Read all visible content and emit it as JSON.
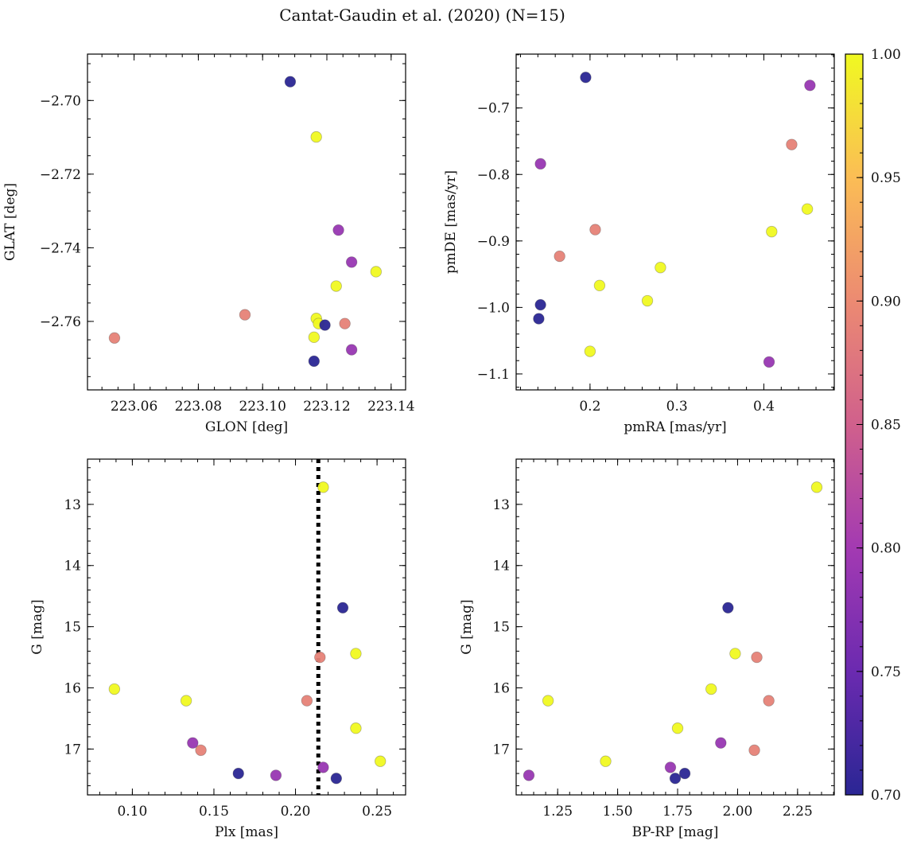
{
  "figure": {
    "title": "Cantat-Gaudin et al. (2020) (N=15)"
  },
  "colorbar": {
    "min": 0.7,
    "max": 1.0,
    "ticks": [
      0.7,
      0.75,
      0.8,
      0.85,
      0.9,
      0.95,
      1.0
    ],
    "tick_labels": [
      "0.70",
      "0.75",
      "0.80",
      "0.85",
      "0.90",
      "0.95",
      "1.00"
    ],
    "colormap": "plasma",
    "color_stops": [
      "#2a2694",
      "#6b2ab0",
      "#a33ab2",
      "#d0608c",
      "#ec8a72",
      "#fbbd55",
      "#f0f921"
    ]
  },
  "chart_data": [
    {
      "type": "scatter",
      "xlabel": "GLON [deg]",
      "ylabel": "GLAT [deg]",
      "xlim": [
        223.0455,
        223.1445
      ],
      "ylim": [
        -2.7786,
        -2.6874
      ],
      "xticks": [
        223.06,
        223.08,
        223.1,
        223.12,
        223.14
      ],
      "xtick_labels": [
        "223.06",
        "223.08",
        "223.10",
        "223.12",
        "223.14"
      ],
      "xminor": 0.005,
      "yticks": [
        -2.7,
        -2.72,
        -2.74,
        -2.76
      ],
      "ytick_labels": [
        "−2.70",
        "−2.72",
        "−2.74",
        "−2.76"
      ],
      "yminor": 0.005,
      "points": [
        {
          "x": 223.0539,
          "y": -2.7645,
          "c": 0.89
        },
        {
          "x": 223.0945,
          "y": -2.7582,
          "c": 0.89
        },
        {
          "x": 223.1086,
          "y": -2.6949,
          "c": 0.7
        },
        {
          "x": 223.1167,
          "y": -2.7099,
          "c": 1.0
        },
        {
          "x": 223.1236,
          "y": -2.7352,
          "c": 0.79
        },
        {
          "x": 223.1277,
          "y": -2.7439,
          "c": 0.79
        },
        {
          "x": 223.1353,
          "y": -2.7465,
          "c": 1.0
        },
        {
          "x": 223.1229,
          "y": -2.7504,
          "c": 1.0
        },
        {
          "x": 223.1167,
          "y": -2.7592,
          "c": 1.0
        },
        {
          "x": 223.1174,
          "y": -2.7606,
          "c": 1.0
        },
        {
          "x": 223.1194,
          "y": -2.761,
          "c": 0.7
        },
        {
          "x": 223.1256,
          "y": -2.7606,
          "c": 0.89
        },
        {
          "x": 223.116,
          "y": -2.7643,
          "c": 1.0
        },
        {
          "x": 223.1277,
          "y": -2.7677,
          "c": 0.79
        },
        {
          "x": 223.116,
          "y": -2.7708,
          "c": 0.7
        }
      ]
    },
    {
      "type": "scatter",
      "xlabel": "pmRA [mas/yr]",
      "ylabel": "pmDE [mas/yr]",
      "xlim": [
        0.115,
        0.481
      ],
      "ylim": [
        -1.124,
        -0.619
      ],
      "xticks": [
        0.2,
        0.3,
        0.4
      ],
      "xtick_labels": [
        "0.2",
        "0.3",
        "0.4"
      ],
      "xminor": 0.02,
      "yticks": [
        -0.7,
        -0.8,
        -0.9,
        -1.0,
        -1.1
      ],
      "ytick_labels": [
        "−0.7",
        "−0.8",
        "−0.9",
        "−1.0",
        "−1.1"
      ],
      "yminor": 0.02,
      "points": [
        {
          "x": 0.195,
          "y": -0.654,
          "c": 0.7
        },
        {
          "x": 0.453,
          "y": -0.666,
          "c": 0.79
        },
        {
          "x": 0.432,
          "y": -0.755,
          "c": 0.89
        },
        {
          "x": 0.143,
          "y": -0.784,
          "c": 0.79
        },
        {
          "x": 0.45,
          "y": -0.852,
          "c": 1.0
        },
        {
          "x": 0.206,
          "y": -0.883,
          "c": 0.89
        },
        {
          "x": 0.409,
          "y": -0.886,
          "c": 1.0
        },
        {
          "x": 0.165,
          "y": -0.923,
          "c": 0.89
        },
        {
          "x": 0.281,
          "y": -0.94,
          "c": 1.0
        },
        {
          "x": 0.211,
          "y": -0.967,
          "c": 1.0
        },
        {
          "x": 0.266,
          "y": -0.99,
          "c": 1.0
        },
        {
          "x": 0.143,
          "y": -0.996,
          "c": 0.7
        },
        {
          "x": 0.141,
          "y": -1.017,
          "c": 0.7
        },
        {
          "x": 0.2,
          "y": -1.066,
          "c": 1.0
        },
        {
          "x": 0.406,
          "y": -1.082,
          "c": 0.79
        }
      ]
    },
    {
      "type": "scatter",
      "xlabel": "Plx [mas]",
      "ylabel": "G [mag]",
      "xlim": [
        0.0725,
        0.2675
      ],
      "ylim": [
        17.75,
        12.26
      ],
      "xticks": [
        0.1,
        0.15,
        0.2,
        0.25
      ],
      "xtick_labels": [
        "0.10",
        "0.15",
        "0.20",
        "0.25"
      ],
      "xminor": 0.01,
      "yticks": [
        13,
        14,
        15,
        16,
        17
      ],
      "ytick_labels": [
        "13",
        "14",
        "15",
        "16",
        "17"
      ],
      "yminor": 0.2,
      "vline": {
        "x": 0.214,
        "style": "dotted"
      },
      "points": [
        {
          "x": 0.217,
          "y": 12.72,
          "c": 1.0
        },
        {
          "x": 0.229,
          "y": 14.69,
          "c": 0.7
        },
        {
          "x": 0.237,
          "y": 15.44,
          "c": 1.0
        },
        {
          "x": 0.215,
          "y": 15.5,
          "c": 0.89
        },
        {
          "x": 0.089,
          "y": 16.02,
          "c": 1.0
        },
        {
          "x": 0.133,
          "y": 16.21,
          "c": 1.0
        },
        {
          "x": 0.207,
          "y": 16.21,
          "c": 0.89
        },
        {
          "x": 0.237,
          "y": 16.66,
          "c": 1.0
        },
        {
          "x": 0.137,
          "y": 16.9,
          "c": 0.79
        },
        {
          "x": 0.142,
          "y": 17.02,
          "c": 0.89
        },
        {
          "x": 0.252,
          "y": 17.2,
          "c": 1.0
        },
        {
          "x": 0.217,
          "y": 17.3,
          "c": 0.79
        },
        {
          "x": 0.165,
          "y": 17.4,
          "c": 0.7
        },
        {
          "x": 0.188,
          "y": 17.43,
          "c": 0.79
        },
        {
          "x": 0.225,
          "y": 17.48,
          "c": 0.7
        }
      ]
    },
    {
      "type": "scatter",
      "xlabel": "BP-RP [mag]",
      "ylabel": "G [mag]",
      "xlim": [
        1.077,
        2.403
      ],
      "ylim": [
        17.75,
        12.26
      ],
      "xticks": [
        1.25,
        1.5,
        1.75,
        2.0,
        2.25
      ],
      "xtick_labels": [
        "1.25",
        "1.50",
        "1.75",
        "2.00",
        "2.25"
      ],
      "xminor": 0.05,
      "yticks": [
        13,
        14,
        15,
        16,
        17
      ],
      "ytick_labels": [
        "13",
        "14",
        "15",
        "16",
        "17"
      ],
      "yminor": 0.2,
      "points": [
        {
          "x": 2.33,
          "y": 12.72,
          "c": 1.0
        },
        {
          "x": 1.96,
          "y": 14.69,
          "c": 0.7
        },
        {
          "x": 1.99,
          "y": 15.44,
          "c": 1.0
        },
        {
          "x": 2.08,
          "y": 15.5,
          "c": 0.89
        },
        {
          "x": 1.89,
          "y": 16.02,
          "c": 1.0
        },
        {
          "x": 1.21,
          "y": 16.21,
          "c": 1.0
        },
        {
          "x": 2.13,
          "y": 16.21,
          "c": 0.89
        },
        {
          "x": 1.75,
          "y": 16.66,
          "c": 1.0
        },
        {
          "x": 1.93,
          "y": 16.9,
          "c": 0.79
        },
        {
          "x": 2.07,
          "y": 17.02,
          "c": 0.89
        },
        {
          "x": 1.45,
          "y": 17.2,
          "c": 1.0
        },
        {
          "x": 1.72,
          "y": 17.3,
          "c": 0.79
        },
        {
          "x": 1.78,
          "y": 17.4,
          "c": 0.7
        },
        {
          "x": 1.13,
          "y": 17.43,
          "c": 0.79
        },
        {
          "x": 1.74,
          "y": 17.48,
          "c": 0.7
        }
      ]
    }
  ]
}
